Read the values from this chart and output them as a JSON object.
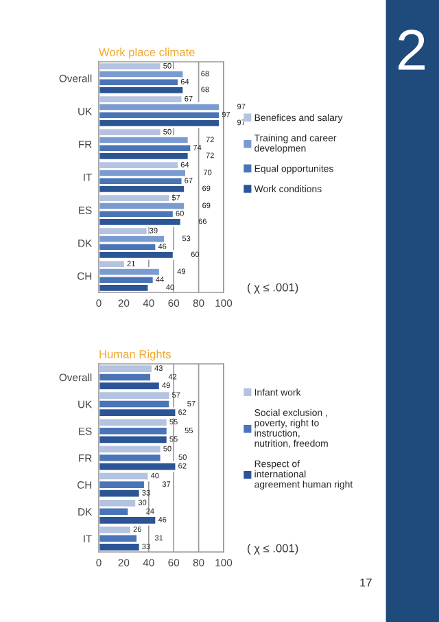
{
  "chart_data": [
    {
      "type": "bar",
      "orientation": "horizontal",
      "title": "Work place climate",
      "categories": [
        "Overall",
        "UK",
        "FR",
        "IT",
        "ES",
        "DK",
        "CH"
      ],
      "series": [
        {
          "name": "Benefices and salary",
          "color": "#b4c3e0",
          "values": [
            50,
            67,
            50,
            64,
            57,
            39,
            21
          ]
        },
        {
          "name": "Training and career developmen",
          "color": "#7a9bd0",
          "values": [
            68,
            97,
            72,
            70,
            69,
            53,
            49
          ]
        },
        {
          "name": "Equal opportunites",
          "color": "#4a74b8",
          "values": [
            64,
            97,
            74,
            67,
            60,
            46,
            44
          ]
        },
        {
          "name": "Work conditions",
          "color": "#2c5596",
          "values": [
            68,
            97,
            72,
            69,
            66,
            60,
            40
          ]
        }
      ],
      "xlim": [
        0,
        100
      ],
      "xticks": [
        0,
        20,
        40,
        60,
        80,
        100
      ],
      "grid": "x",
      "legend": "right",
      "data_labels": true,
      "annotations": [
        "( χ ≤ .001)",
        "2"
      ]
    },
    {
      "type": "bar",
      "orientation": "horizontal",
      "title": "Human Rights",
      "categories": [
        "Overall",
        "UK",
        "ES",
        "FR",
        "CH",
        "DK",
        "IT"
      ],
      "series": [
        {
          "name": "Infant work",
          "color": "#b4c3e0",
          "values": [
            43,
            57,
            55,
            50,
            40,
            30,
            26
          ]
        },
        {
          "name": "Social exclusion , poverty, right to instruction, nutrition, freedom",
          "color": "#4a74b8",
          "values": [
            42,
            57,
            55,
            50,
            37,
            24,
            31
          ]
        },
        {
          "name": "Respect of international agreement human right",
          "color": "#2c5596",
          "values": [
            49,
            62,
            55,
            62,
            33,
            46,
            33
          ]
        }
      ],
      "xlim": [
        0,
        100
      ],
      "xticks": [
        0,
        20,
        40,
        60,
        80,
        100
      ],
      "grid": "x",
      "legend": "right",
      "data_labels": true,
      "annotations": [
        "( χ ≤ .001)",
        "17"
      ]
    }
  ]
}
